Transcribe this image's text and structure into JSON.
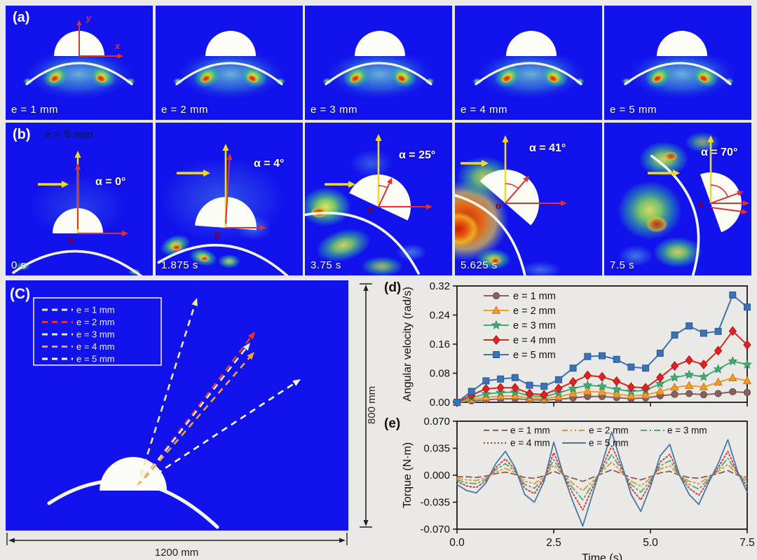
{
  "figure": {
    "panel_a": {
      "label": "(a)",
      "axis_x_label": "x",
      "axis_y_label": "y",
      "frames": [
        {
          "label": "e = 1 mm"
        },
        {
          "label": "e = 2 mm"
        },
        {
          "label": "e = 3 mm"
        },
        {
          "label": "e = 4 mm"
        },
        {
          "label": "e = 5 mm"
        }
      ]
    },
    "panel_b": {
      "label": "(b)",
      "subtitle": "e = 5 mm",
      "origin_label": "o",
      "frames": [
        {
          "time": "0 s",
          "alpha": "α = 0°"
        },
        {
          "time": "1.875 s",
          "alpha": "α = 4°"
        },
        {
          "time": "3.75 s",
          "alpha": "α = 25°"
        },
        {
          "time": "5.625 s",
          "alpha": "α = 41°"
        },
        {
          "time": "7.5 s",
          "alpha": "α = 70°"
        }
      ]
    },
    "panel_c": {
      "label": "(C)",
      "legend": [
        {
          "label": "e = 1 mm",
          "color": "#efeab0"
        },
        {
          "label": "e = 2 mm",
          "color": "#e23535"
        },
        {
          "label": "e = 3 mm",
          "color": "#d9eeda"
        },
        {
          "label": "e = 4 mm",
          "color": "#f0a434"
        },
        {
          "label": "e = 5 mm",
          "color": "#ffffff"
        }
      ],
      "width_label": "1200 mm",
      "height_label": "800 mm"
    },
    "panel_d": {
      "label": "(d)"
    },
    "panel_e": {
      "label": "(e)"
    }
  },
  "chart_data": [
    {
      "id": "angular_velocity",
      "type": "line",
      "title": "",
      "xlabel": "",
      "ylabel": "Angular velocity (rad/s)",
      "xlim": [
        0,
        7.5
      ],
      "ylim": [
        0,
        0.32
      ],
      "yticks": [
        0.0,
        0.08,
        0.16,
        0.24,
        0.32
      ],
      "ytick_labels": [
        "0.00",
        "0.08",
        "0.16",
        "0.24",
        "0.32"
      ],
      "xticks": [
        2.5,
        5.0,
        7.5
      ],
      "xtick_labels": [],
      "grid": false,
      "legend_position": "top-left",
      "x": [
        0,
        0.375,
        0.75,
        1.125,
        1.5,
        1.875,
        2.25,
        2.625,
        3,
        3.375,
        3.75,
        4.125,
        4.5,
        4.875,
        5.25,
        5.625,
        6,
        6.375,
        6.75,
        7.125,
        7.5
      ],
      "series": [
        {
          "name": "e = 1 mm",
          "color": "#8a5f5f",
          "marker": "circle",
          "values": [
            0,
            0.004,
            0.007,
            0.009,
            0.01,
            0.007,
            0.006,
            0.008,
            0.012,
            0.016,
            0.016,
            0.013,
            0.01,
            0.012,
            0.018,
            0.022,
            0.024,
            0.021,
            0.024,
            0.029,
            0.027
          ]
        },
        {
          "name": "e = 2 mm",
          "color": "#f39a2a",
          "marker": "triangle",
          "values": [
            0,
            0.008,
            0.014,
            0.017,
            0.018,
            0.012,
            0.01,
            0.016,
            0.024,
            0.03,
            0.028,
            0.022,
            0.018,
            0.02,
            0.03,
            0.041,
            0.046,
            0.042,
            0.055,
            0.067,
            0.059
          ]
        },
        {
          "name": "e = 3 mm",
          "color": "#3fae74",
          "marker": "star",
          "values": [
            0,
            0.013,
            0.023,
            0.027,
            0.028,
            0.018,
            0.015,
            0.026,
            0.038,
            0.047,
            0.044,
            0.036,
            0.03,
            0.033,
            0.051,
            0.068,
            0.076,
            0.07,
            0.091,
            0.113,
            0.104
          ]
        },
        {
          "name": "e = 4 mm",
          "color": "#e22222",
          "marker": "diamond",
          "values": [
            0,
            0.02,
            0.037,
            0.04,
            0.04,
            0.024,
            0.021,
            0.038,
            0.056,
            0.074,
            0.07,
            0.058,
            0.042,
            0.04,
            0.068,
            0.1,
            0.116,
            0.104,
            0.142,
            0.196,
            0.158
          ]
        },
        {
          "name": "e = 5 mm",
          "color": "#3a72b5",
          "marker": "square",
          "values": [
            0,
            0.03,
            0.059,
            0.064,
            0.068,
            0.047,
            0.044,
            0.062,
            0.094,
            0.126,
            0.128,
            0.118,
            0.097,
            0.094,
            0.135,
            0.185,
            0.21,
            0.19,
            0.195,
            0.295,
            0.262
          ]
        }
      ]
    },
    {
      "id": "torque",
      "type": "line",
      "title": "",
      "xlabel": "Time (s)",
      "ylabel": "Torque (N·m)",
      "xlim": [
        0,
        7.5
      ],
      "ylim": [
        -0.07,
        0.07
      ],
      "yticks": [
        0.07,
        0.035,
        0.0,
        -0.035,
        -0.07
      ],
      "ytick_labels": [
        "0.070",
        "0.035",
        "0.000",
        "-0.035",
        "-0.070"
      ],
      "xticks": [
        0.0,
        2.5,
        5.0,
        7.5
      ],
      "xtick_labels": [
        "0.0",
        "2.5",
        "5.0",
        "7.5"
      ],
      "grid": false,
      "legend_position": "top",
      "x": [
        0,
        0.25,
        0.5,
        0.75,
        1,
        1.25,
        1.5,
        1.75,
        2,
        2.25,
        2.5,
        2.75,
        3,
        3.25,
        3.5,
        3.75,
        4,
        4.25,
        4.5,
        4.75,
        5,
        5.25,
        5.5,
        5.75,
        6,
        6.25,
        6.5,
        6.75,
        7,
        7.25,
        7.5
      ],
      "series": [
        {
          "name": "e = 1 mm",
          "color": "#8a5a5a",
          "dash": "8 5",
          "values": [
            -0.002,
            -0.002,
            -0.003,
            -0.001,
            0.002,
            0.004,
            0.001,
            -0.003,
            -0.004,
            -0.001,
            0.005,
            0.0,
            -0.004,
            -0.008,
            -0.003,
            0.002,
            0.007,
            0.002,
            -0.003,
            -0.006,
            -0.002,
            0.003,
            0.005,
            0.0,
            -0.003,
            -0.004,
            -0.001,
            0.002,
            0.006,
            0.0,
            -0.003
          ]
        },
        {
          "name": "e = 2 mm",
          "color": "#e89030",
          "dash": "8 4 2 4 2 4",
          "values": [
            -0.004,
            -0.006,
            -0.007,
            -0.003,
            0.004,
            0.009,
            0.003,
            -0.008,
            -0.011,
            -0.002,
            0.013,
            0.0,
            -0.011,
            -0.02,
            -0.008,
            0.005,
            0.017,
            0.004,
            -0.008,
            -0.014,
            -0.004,
            0.008,
            0.012,
            0.0,
            -0.008,
            -0.011,
            -0.003,
            0.005,
            0.014,
            0.001,
            -0.007
          ]
        },
        {
          "name": "e = 3 mm",
          "color": "#4aaa7a",
          "dash": "9 4 2 4",
          "values": [
            -0.006,
            -0.01,
            -0.011,
            -0.005,
            0.007,
            0.015,
            0.005,
            -0.012,
            -0.017,
            -0.004,
            0.02,
            0.0,
            -0.017,
            -0.032,
            -0.012,
            0.007,
            0.027,
            0.007,
            -0.012,
            -0.022,
            -0.007,
            0.012,
            0.019,
            0.0,
            -0.012,
            -0.018,
            -0.005,
            0.007,
            0.022,
            0.002,
            -0.011
          ]
        },
        {
          "name": "e = 4 mm",
          "color": "#d83030",
          "dash": "2 3",
          "values": [
            -0.008,
            -0.014,
            -0.016,
            -0.007,
            0.01,
            0.021,
            0.007,
            -0.017,
            -0.024,
            -0.005,
            0.029,
            0.0,
            -0.024,
            -0.045,
            -0.017,
            0.01,
            0.038,
            0.01,
            -0.017,
            -0.032,
            -0.01,
            0.017,
            0.027,
            0.0,
            -0.017,
            -0.026,
            -0.007,
            0.01,
            0.031,
            0.003,
            -0.015
          ]
        },
        {
          "name": "e = 5 mm",
          "color": "#4878a8",
          "dash": "",
          "values": [
            -0.012,
            -0.02,
            -0.023,
            -0.01,
            0.015,
            0.031,
            0.01,
            -0.025,
            -0.035,
            -0.008,
            0.043,
            0.0,
            -0.035,
            -0.066,
            -0.025,
            0.015,
            0.056,
            0.015,
            -0.025,
            -0.047,
            -0.015,
            0.025,
            0.04,
            0.0,
            -0.025,
            -0.038,
            -0.01,
            0.015,
            0.046,
            0.005,
            -0.022
          ]
        }
      ]
    }
  ]
}
